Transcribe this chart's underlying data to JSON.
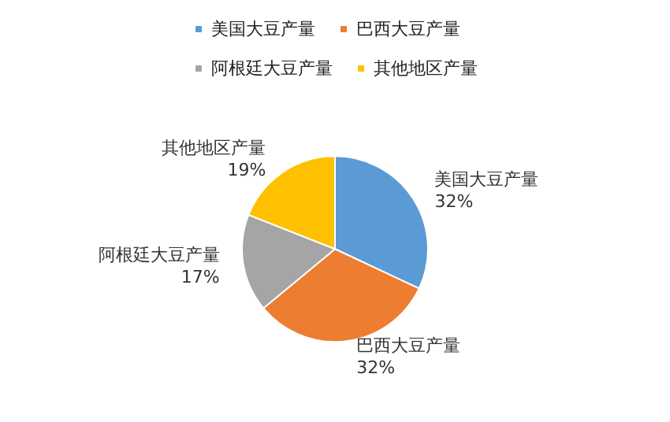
{
  "chart_data": {
    "type": "pie",
    "categories": [
      "美国大豆产量",
      "巴西大豆产量",
      "阿根廷大豆产量",
      "其他地区产量"
    ],
    "values": [
      32,
      32,
      17,
      19
    ],
    "colors": [
      "#5b9bd5",
      "#ed7d31",
      "#a5a5a5",
      "#ffc000"
    ],
    "value_labels": [
      "32%",
      "32%",
      "17%",
      "19%"
    ],
    "legend": "top"
  }
}
